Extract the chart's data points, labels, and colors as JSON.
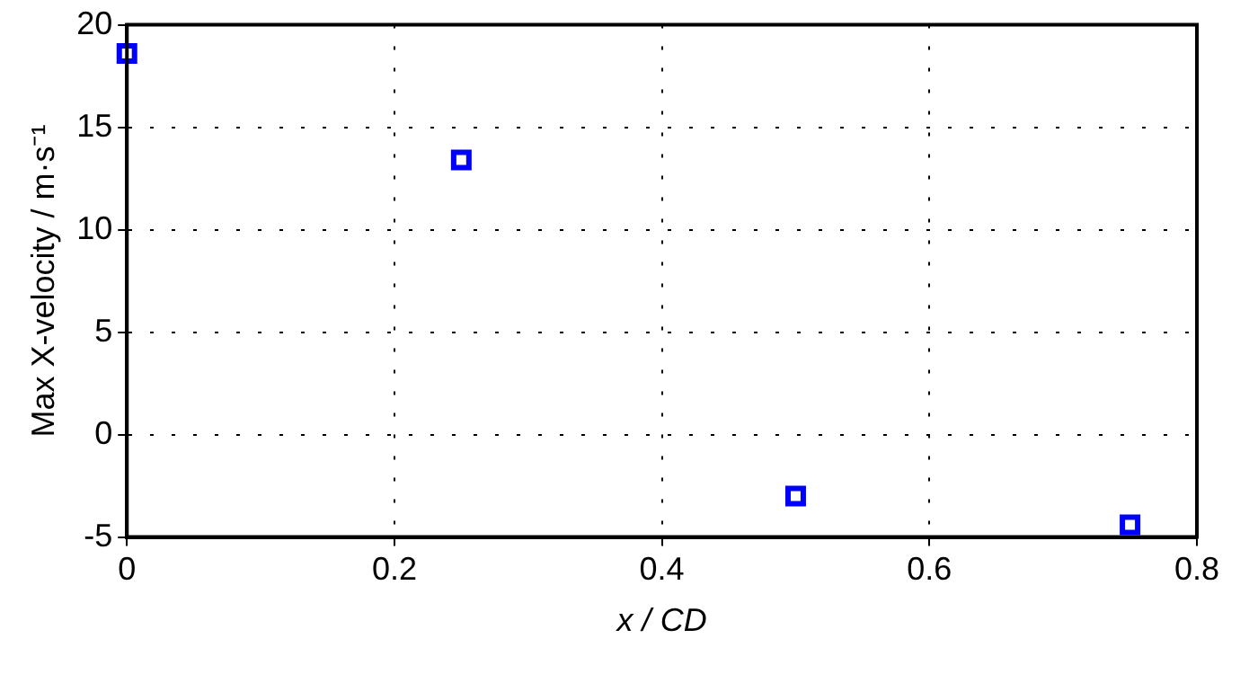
{
  "chart_data": {
    "type": "scatter",
    "xlabel": "x / CD",
    "ylabel": "Max X-velocity / m·s⁻¹",
    "x": [
      0,
      0.25,
      0.5,
      0.75
    ],
    "series": [
      {
        "color": "#0000ff",
        "values": [
          18.6,
          13.4,
          -3.0,
          -4.4
        ]
      }
    ],
    "xlim": [
      0,
      0.8
    ],
    "xticks": [
      0,
      0.2,
      0.4,
      0.6,
      0.8
    ],
    "ylim": [
      -5,
      20
    ],
    "yticks": [
      -5,
      0,
      5,
      10,
      15,
      20
    ],
    "grid": true,
    "marker": "square",
    "legend": false
  }
}
